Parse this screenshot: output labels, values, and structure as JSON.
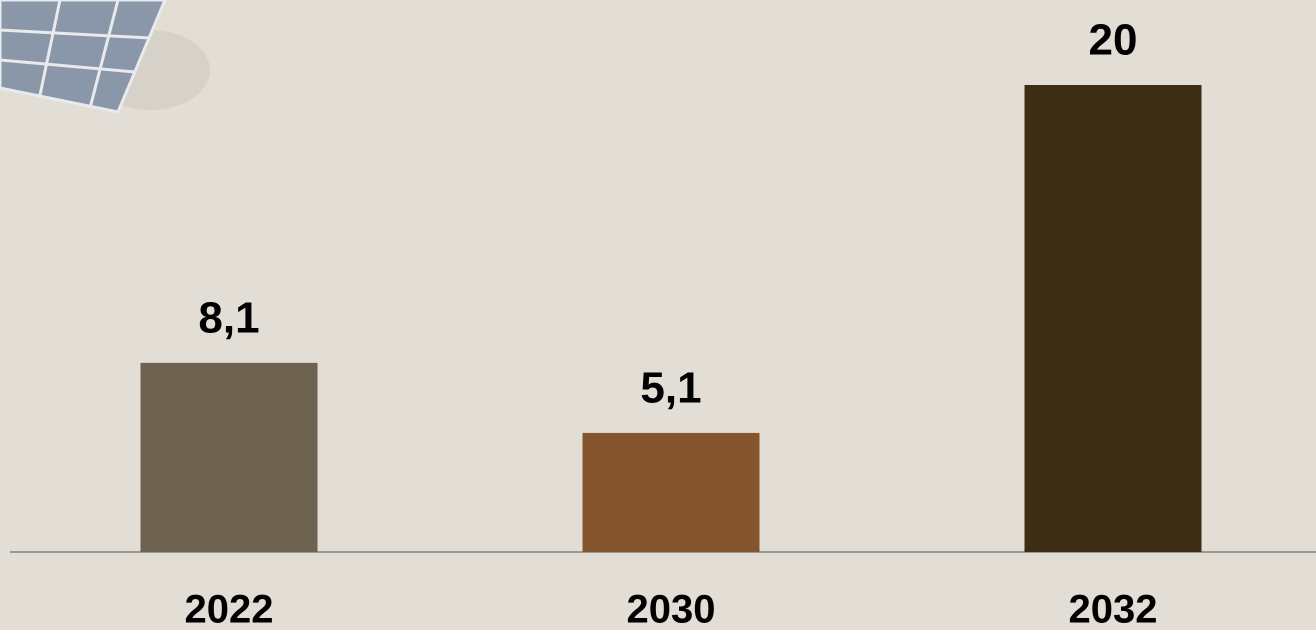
{
  "chart_data": {
    "type": "bar",
    "categories": [
      "2022",
      "2030",
      "2032"
    ],
    "values": [
      8.1,
      5.1,
      20
    ],
    "value_labels": [
      "8,1",
      "5,1",
      "20"
    ],
    "colors": [
      "#6e6350",
      "#85562e",
      "#3d2d13"
    ]
  }
}
